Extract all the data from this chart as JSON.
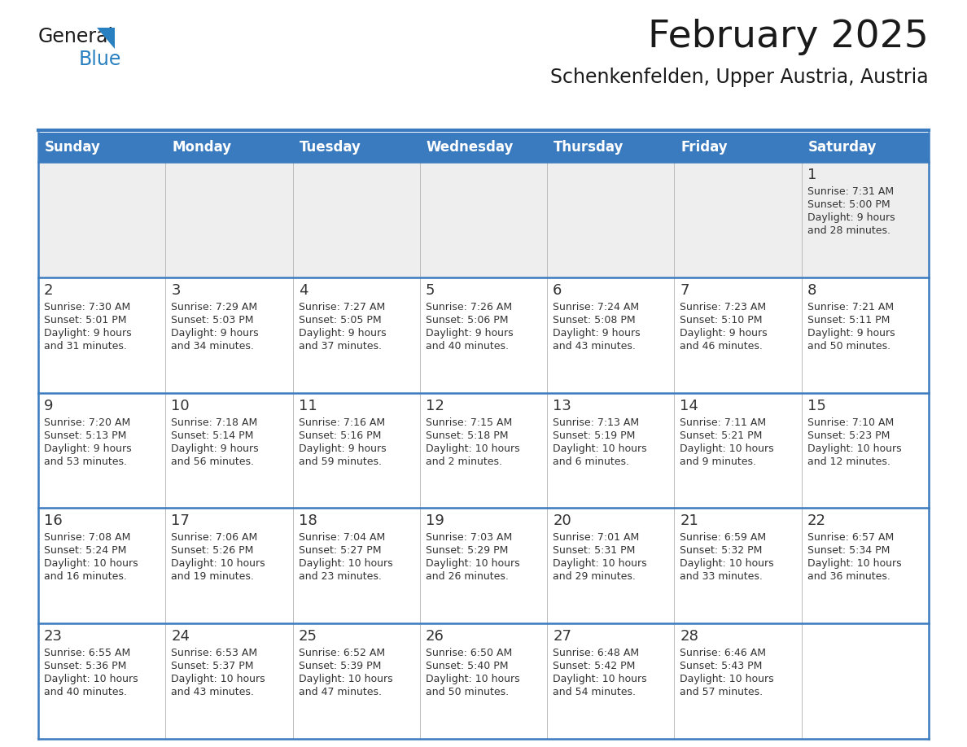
{
  "title": "February 2025",
  "subtitle": "Schenkenfelden, Upper Austria, Austria",
  "header_bg_color": "#3a7abf",
  "header_text_color": "#ffffff",
  "row_bg_gray": "#eeeeee",
  "row_bg_white": "#ffffff",
  "cell_text_color": "#333333",
  "day_num_color": "#333333",
  "border_color": "#3a7abf",
  "sep_color": "#3a7abf",
  "days_of_week": [
    "Sunday",
    "Monday",
    "Tuesday",
    "Wednesday",
    "Thursday",
    "Friday",
    "Saturday"
  ],
  "weeks": [
    [
      {
        "day": "",
        "info": ""
      },
      {
        "day": "",
        "info": ""
      },
      {
        "day": "",
        "info": ""
      },
      {
        "day": "",
        "info": ""
      },
      {
        "day": "",
        "info": ""
      },
      {
        "day": "",
        "info": ""
      },
      {
        "day": "1",
        "info": "Sunrise: 7:31 AM\nSunset: 5:00 PM\nDaylight: 9 hours\nand 28 minutes."
      }
    ],
    [
      {
        "day": "2",
        "info": "Sunrise: 7:30 AM\nSunset: 5:01 PM\nDaylight: 9 hours\nand 31 minutes."
      },
      {
        "day": "3",
        "info": "Sunrise: 7:29 AM\nSunset: 5:03 PM\nDaylight: 9 hours\nand 34 minutes."
      },
      {
        "day": "4",
        "info": "Sunrise: 7:27 AM\nSunset: 5:05 PM\nDaylight: 9 hours\nand 37 minutes."
      },
      {
        "day": "5",
        "info": "Sunrise: 7:26 AM\nSunset: 5:06 PM\nDaylight: 9 hours\nand 40 minutes."
      },
      {
        "day": "6",
        "info": "Sunrise: 7:24 AM\nSunset: 5:08 PM\nDaylight: 9 hours\nand 43 minutes."
      },
      {
        "day": "7",
        "info": "Sunrise: 7:23 AM\nSunset: 5:10 PM\nDaylight: 9 hours\nand 46 minutes."
      },
      {
        "day": "8",
        "info": "Sunrise: 7:21 AM\nSunset: 5:11 PM\nDaylight: 9 hours\nand 50 minutes."
      }
    ],
    [
      {
        "day": "9",
        "info": "Sunrise: 7:20 AM\nSunset: 5:13 PM\nDaylight: 9 hours\nand 53 minutes."
      },
      {
        "day": "10",
        "info": "Sunrise: 7:18 AM\nSunset: 5:14 PM\nDaylight: 9 hours\nand 56 minutes."
      },
      {
        "day": "11",
        "info": "Sunrise: 7:16 AM\nSunset: 5:16 PM\nDaylight: 9 hours\nand 59 minutes."
      },
      {
        "day": "12",
        "info": "Sunrise: 7:15 AM\nSunset: 5:18 PM\nDaylight: 10 hours\nand 2 minutes."
      },
      {
        "day": "13",
        "info": "Sunrise: 7:13 AM\nSunset: 5:19 PM\nDaylight: 10 hours\nand 6 minutes."
      },
      {
        "day": "14",
        "info": "Sunrise: 7:11 AM\nSunset: 5:21 PM\nDaylight: 10 hours\nand 9 minutes."
      },
      {
        "day": "15",
        "info": "Sunrise: 7:10 AM\nSunset: 5:23 PM\nDaylight: 10 hours\nand 12 minutes."
      }
    ],
    [
      {
        "day": "16",
        "info": "Sunrise: 7:08 AM\nSunset: 5:24 PM\nDaylight: 10 hours\nand 16 minutes."
      },
      {
        "day": "17",
        "info": "Sunrise: 7:06 AM\nSunset: 5:26 PM\nDaylight: 10 hours\nand 19 minutes."
      },
      {
        "day": "18",
        "info": "Sunrise: 7:04 AM\nSunset: 5:27 PM\nDaylight: 10 hours\nand 23 minutes."
      },
      {
        "day": "19",
        "info": "Sunrise: 7:03 AM\nSunset: 5:29 PM\nDaylight: 10 hours\nand 26 minutes."
      },
      {
        "day": "20",
        "info": "Sunrise: 7:01 AM\nSunset: 5:31 PM\nDaylight: 10 hours\nand 29 minutes."
      },
      {
        "day": "21",
        "info": "Sunrise: 6:59 AM\nSunset: 5:32 PM\nDaylight: 10 hours\nand 33 minutes."
      },
      {
        "day": "22",
        "info": "Sunrise: 6:57 AM\nSunset: 5:34 PM\nDaylight: 10 hours\nand 36 minutes."
      }
    ],
    [
      {
        "day": "23",
        "info": "Sunrise: 6:55 AM\nSunset: 5:36 PM\nDaylight: 10 hours\nand 40 minutes."
      },
      {
        "day": "24",
        "info": "Sunrise: 6:53 AM\nSunset: 5:37 PM\nDaylight: 10 hours\nand 43 minutes."
      },
      {
        "day": "25",
        "info": "Sunrise: 6:52 AM\nSunset: 5:39 PM\nDaylight: 10 hours\nand 47 minutes."
      },
      {
        "day": "26",
        "info": "Sunrise: 6:50 AM\nSunset: 5:40 PM\nDaylight: 10 hours\nand 50 minutes."
      },
      {
        "day": "27",
        "info": "Sunrise: 6:48 AM\nSunset: 5:42 PM\nDaylight: 10 hours\nand 54 minutes."
      },
      {
        "day": "28",
        "info": "Sunrise: 6:46 AM\nSunset: 5:43 PM\nDaylight: 10 hours\nand 57 minutes."
      },
      {
        "day": "",
        "info": ""
      }
    ]
  ]
}
